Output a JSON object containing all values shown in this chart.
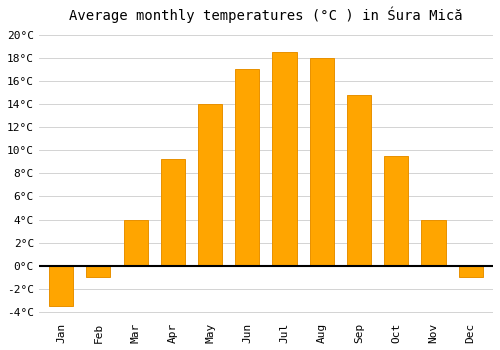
{
  "months": [
    "Jan",
    "Feb",
    "Mar",
    "Apr",
    "May",
    "Jun",
    "Jul",
    "Aug",
    "Sep",
    "Oct",
    "Nov",
    "Dec"
  ],
  "values": [
    -3.5,
    -1.0,
    4.0,
    9.2,
    14.0,
    17.0,
    18.5,
    18.0,
    14.8,
    9.5,
    4.0,
    -1.0
  ],
  "bar_color": "#FFA500",
  "bar_edge_color": "#E89000",
  "title": "Average monthly temperatures (°C ) in Śura Mică",
  "ylim": [
    -4.5,
    20.5
  ],
  "yticks": [
    -4,
    -2,
    0,
    2,
    4,
    6,
    8,
    10,
    12,
    14,
    16,
    18,
    20
  ],
  "background_color": "#ffffff",
  "grid_color": "#cccccc",
  "title_fontsize": 10,
  "tick_fontsize": 8,
  "bar_width": 0.65
}
